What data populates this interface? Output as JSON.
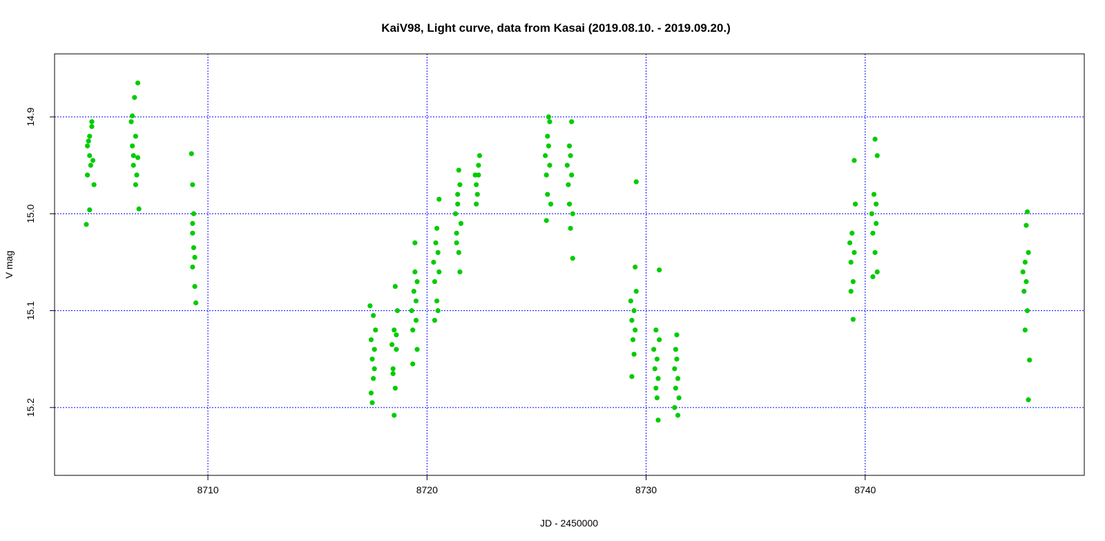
{
  "chart_data": {
    "type": "scatter",
    "title": "KaiV98, Light curve, data from Kasai (2019.08.10. - 2019.09.20.)",
    "xlabel": "JD - 2450000",
    "ylabel": "V mag",
    "xlim": [
      8703.0,
      8750.0
    ],
    "ylim": [
      15.27,
      14.835
    ],
    "y_inverted": true,
    "xticks": [
      8710,
      8720,
      8730,
      8740
    ],
    "yticks": [
      14.9,
      15.0,
      15.1,
      15.2
    ],
    "xtick_labels": [
      "8710",
      "8720",
      "8730",
      "8740"
    ],
    "ytick_labels": [
      "14.9",
      "15.0",
      "15.1",
      "15.2"
    ],
    "grid": true,
    "grid_color": "#0000ff",
    "point_color": "#00cc00",
    "legend": "none",
    "series": [
      {
        "points": [
          [
            8704.45,
            15.011
          ],
          [
            8704.5,
            14.93
          ],
          [
            8704.55,
            14.925
          ],
          [
            8704.6,
            14.92
          ],
          [
            8704.65,
            14.95
          ],
          [
            8704.7,
            14.91
          ],
          [
            8704.75,
            14.945
          ],
          [
            8704.8,
            14.97
          ],
          [
            8704.5,
            14.96
          ],
          [
            8704.6,
            14.94
          ],
          [
            8704.7,
            14.905
          ],
          [
            8704.6,
            14.996
          ],
          [
            8706.5,
            14.905
          ],
          [
            8706.55,
            14.93
          ],
          [
            8706.6,
            14.95
          ],
          [
            8706.65,
            14.88
          ],
          [
            8706.7,
            14.92
          ],
          [
            8706.75,
            14.96
          ],
          [
            8706.8,
            14.865
          ],
          [
            8706.85,
            14.995
          ],
          [
            8706.6,
            14.94
          ],
          [
            8706.7,
            14.97
          ],
          [
            8706.55,
            14.899
          ],
          [
            8706.8,
            14.942
          ],
          [
            8709.25,
            14.938
          ],
          [
            8709.3,
            14.97
          ],
          [
            8709.35,
            15.0
          ],
          [
            8709.3,
            15.02
          ],
          [
            8709.35,
            15.035
          ],
          [
            8709.3,
            15.055
          ],
          [
            8709.4,
            15.075
          ],
          [
            8709.45,
            15.092
          ],
          [
            8709.3,
            15.01
          ],
          [
            8709.4,
            15.045
          ],
          [
            8717.4,
            15.095
          ],
          [
            8717.45,
            15.13
          ],
          [
            8717.5,
            15.15
          ],
          [
            8717.55,
            15.17
          ],
          [
            8717.6,
            15.14
          ],
          [
            8717.65,
            15.12
          ],
          [
            8717.5,
            15.195
          ],
          [
            8717.55,
            15.105
          ],
          [
            8717.6,
            15.16
          ],
          [
            8717.45,
            15.185
          ],
          [
            8718.4,
            15.135
          ],
          [
            8718.45,
            15.16
          ],
          [
            8718.5,
            15.12
          ],
          [
            8718.55,
            15.18
          ],
          [
            8718.6,
            15.14
          ],
          [
            8718.65,
            15.1
          ],
          [
            8718.5,
            15.208
          ],
          [
            8718.55,
            15.075
          ],
          [
            8718.45,
            15.165
          ],
          [
            8718.6,
            15.125
          ],
          [
            8719.3,
            15.1
          ],
          [
            8719.35,
            15.12
          ],
          [
            8719.4,
            15.08
          ],
          [
            8719.45,
            15.06
          ],
          [
            8719.5,
            15.09
          ],
          [
            8719.55,
            15.14
          ],
          [
            8719.45,
            15.03
          ],
          [
            8719.5,
            15.11
          ],
          [
            8719.35,
            15.155
          ],
          [
            8719.55,
            15.07
          ],
          [
            8720.3,
            15.05
          ],
          [
            8720.35,
            15.07
          ],
          [
            8720.4,
            15.03
          ],
          [
            8720.45,
            15.09
          ],
          [
            8720.5,
            15.04
          ],
          [
            8720.55,
            15.06
          ],
          [
            8720.35,
            15.11
          ],
          [
            8720.55,
            14.985
          ],
          [
            8720.45,
            15.015
          ],
          [
            8720.5,
            15.1
          ],
          [
            8721.3,
            15.0
          ],
          [
            8721.35,
            15.02
          ],
          [
            8721.4,
            14.99
          ],
          [
            8721.45,
            15.04
          ],
          [
            8721.5,
            14.97
          ],
          [
            8721.55,
            15.01
          ],
          [
            8721.45,
            14.955
          ],
          [
            8721.5,
            15.06
          ],
          [
            8721.35,
            15.03
          ],
          [
            8721.4,
            14.98
          ],
          [
            8722.2,
            14.96
          ],
          [
            8722.25,
            14.97
          ],
          [
            8722.3,
            14.98
          ],
          [
            8722.35,
            14.95
          ],
          [
            8722.4,
            14.94
          ],
          [
            8722.25,
            14.99
          ],
          [
            8722.35,
            14.96
          ],
          [
            8725.4,
            14.94
          ],
          [
            8725.45,
            14.96
          ],
          [
            8725.5,
            14.98
          ],
          [
            8725.55,
            14.93
          ],
          [
            8725.6,
            14.95
          ],
          [
            8725.65,
            14.99
          ],
          [
            8725.55,
            14.9
          ],
          [
            8725.6,
            14.905
          ],
          [
            8725.45,
            15.007
          ],
          [
            8725.5,
            14.92
          ],
          [
            8726.4,
            14.95
          ],
          [
            8726.45,
            14.97
          ],
          [
            8726.5,
            14.99
          ],
          [
            8726.55,
            14.94
          ],
          [
            8726.6,
            14.96
          ],
          [
            8726.65,
            15.0
          ],
          [
            8726.6,
            14.905
          ],
          [
            8726.65,
            15.046
          ],
          [
            8726.5,
            14.93
          ],
          [
            8726.55,
            15.015
          ],
          [
            8729.3,
            15.09
          ],
          [
            8729.35,
            15.11
          ],
          [
            8729.4,
            15.13
          ],
          [
            8729.45,
            15.1
          ],
          [
            8729.5,
            15.12
          ],
          [
            8729.55,
            15.08
          ],
          [
            8729.55,
            14.967
          ],
          [
            8729.5,
            15.055
          ],
          [
            8729.35,
            15.168
          ],
          [
            8729.45,
            15.145
          ],
          [
            8730.35,
            15.14
          ],
          [
            8730.4,
            15.16
          ],
          [
            8730.45,
            15.18
          ],
          [
            8730.5,
            15.15
          ],
          [
            8730.55,
            15.17
          ],
          [
            8730.6,
            15.13
          ],
          [
            8730.55,
            15.213
          ],
          [
            8730.6,
            15.058
          ],
          [
            8730.45,
            15.12
          ],
          [
            8730.5,
            15.19
          ],
          [
            8731.3,
            15.16
          ],
          [
            8731.35,
            15.18
          ],
          [
            8731.4,
            15.15
          ],
          [
            8731.45,
            15.17
          ],
          [
            8731.5,
            15.19
          ],
          [
            8731.3,
            15.2
          ],
          [
            8731.45,
            15.208
          ],
          [
            8731.4,
            15.125
          ],
          [
            8731.35,
            15.14
          ],
          [
            8739.3,
            15.03
          ],
          [
            8739.35,
            15.05
          ],
          [
            8739.4,
            15.02
          ],
          [
            8739.45,
            15.07
          ],
          [
            8739.5,
            15.04
          ],
          [
            8739.55,
            14.99
          ],
          [
            8739.45,
            15.109
          ],
          [
            8739.5,
            14.945
          ],
          [
            8739.35,
            15.08
          ],
          [
            8740.3,
            15.0
          ],
          [
            8740.35,
            15.02
          ],
          [
            8740.4,
            14.98
          ],
          [
            8740.45,
            15.04
          ],
          [
            8740.5,
            15.01
          ],
          [
            8740.55,
            15.06
          ],
          [
            8740.45,
            14.923
          ],
          [
            8740.55,
            14.94
          ],
          [
            8740.35,
            15.065
          ],
          [
            8740.5,
            14.99
          ],
          [
            8747.2,
            15.06
          ],
          [
            8747.25,
            15.08
          ],
          [
            8747.3,
            15.05
          ],
          [
            8747.35,
            15.07
          ],
          [
            8747.4,
            15.1
          ],
          [
            8747.45,
            15.04
          ],
          [
            8747.4,
            14.998
          ],
          [
            8747.5,
            15.151
          ],
          [
            8747.45,
            15.192
          ],
          [
            8747.3,
            15.12
          ],
          [
            8747.35,
            15.012
          ]
        ]
      }
    ]
  }
}
